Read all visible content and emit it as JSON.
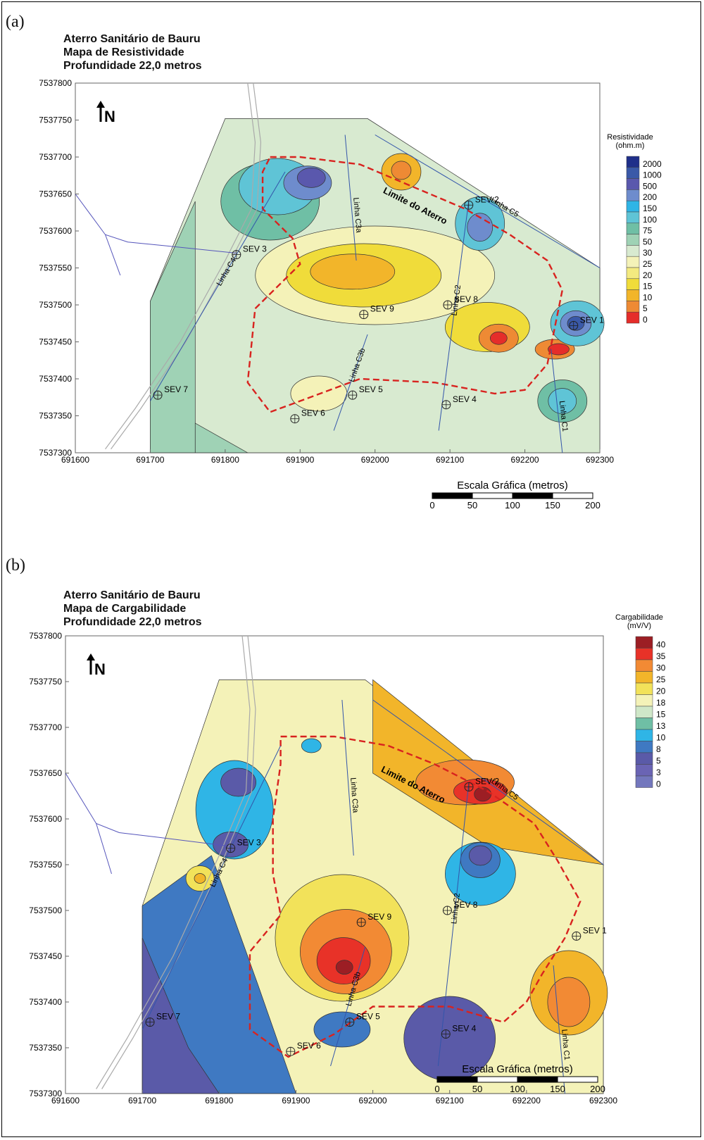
{
  "panels": [
    {
      "letter": "(a)",
      "title_lines": [
        "Aterro Sanitário de Bauru",
        "Mapa de Resistividade",
        "Profundidade 22,0 metros"
      ],
      "north_label": "N",
      "legend_title": [
        "Resistividade",
        "(ohm.m)"
      ],
      "legend_levels": [
        "2000",
        "1000",
        "500",
        "200",
        "150",
        "100",
        "75",
        "50",
        "30",
        "25",
        "20",
        "15",
        "10",
        "5",
        "0"
      ],
      "legend_colors": [
        "#1f2f8a",
        "#3a59a8",
        "#5a58ad",
        "#6e8ccd",
        "#2fb5e6",
        "#5fc4d6",
        "#6fbfa5",
        "#9fd2b5",
        "#d8ead0",
        "#f4f2b8",
        "#f3ea80",
        "#f0dc3a",
        "#f2b52a",
        "#ee8a34",
        "#e52d2a"
      ],
      "limit_label": "Limite do Aterro",
      "scale_title": "Escala Gráfica (metros)",
      "scale_ticks": [
        "0",
        "50",
        "100",
        "150",
        "200"
      ]
    },
    {
      "letter": "(b)",
      "title_lines": [
        "Aterro Sanitário de Bauru",
        "Mapa de Cargabilidade",
        "Profundidade 22,0 metros"
      ],
      "north_label": "N",
      "legend_title": [
        "Cargabilidade",
        "(mV/V)"
      ],
      "legend_levels": [
        "40",
        "35",
        "30",
        "25",
        "20",
        "18",
        "15",
        "13",
        "10",
        "8",
        "5",
        "3",
        "0"
      ],
      "legend_colors": [
        "#9c1e24",
        "#e83228",
        "#f28a34",
        "#f2b52a",
        "#f2e25a",
        "#f4f2b8",
        "#cfe7c8",
        "#6fbfa5",
        "#2fb5e6",
        "#3f79c2",
        "#5a5aa8",
        "#6a64b4",
        "#7377bd"
      ],
      "limit_label": "Limite do Aterro",
      "scale_title": "Escala Gráfica (metros)",
      "scale_ticks": [
        "0",
        "50",
        "100",
        "150",
        "200"
      ]
    }
  ],
  "axes": {
    "x_ticks": [
      "691600",
      "691700",
      "691800",
      "691900",
      "692000",
      "692100",
      "692200",
      "692300"
    ],
    "y_ticks": [
      "7537800",
      "7537750",
      "7537700",
      "7537650",
      "7537600",
      "7537550",
      "7537500",
      "7537450",
      "7537400",
      "7537350",
      "7537300"
    ],
    "xlim": [
      691600,
      692300
    ],
    "ylim": [
      7537300,
      7537800
    ]
  },
  "sevs": [
    {
      "label": "SEV 1",
      "x": 692265,
      "y": 7537472
    },
    {
      "label": "SEV 2",
      "x": 692125,
      "y": 7537635
    },
    {
      "label": "SEV 3",
      "x": 691815,
      "y": 7537568
    },
    {
      "label": "SEV 4",
      "x": 692095,
      "y": 7537365
    },
    {
      "label": "SEV 5",
      "x": 691970,
      "y": 7537378
    },
    {
      "label": "SEV 6",
      "x": 691893,
      "y": 7537346
    },
    {
      "label": "SEV 7",
      "x": 691710,
      "y": 7537378
    },
    {
      "label": "SEV 8",
      "x": 692097,
      "y": 7537500
    },
    {
      "label": "SEV 9",
      "x": 691985,
      "y": 7537487
    }
  ],
  "lines": [
    {
      "label": "Linha C1",
      "pts": [
        [
          692235,
          7537440
        ],
        [
          692250,
          7537300
        ]
      ]
    },
    {
      "label": "Linha C2",
      "pts": [
        [
          692125,
          7537640
        ],
        [
          692085,
          7537330
        ]
      ]
    },
    {
      "label": "Linha C3a",
      "pts": [
        [
          691960,
          7537730
        ],
        [
          691975,
          7537560
        ]
      ]
    },
    {
      "label": "Linha C3b",
      "pts": [
        [
          691990,
          7537460
        ],
        [
          691945,
          7537330
        ]
      ]
    },
    {
      "label": "Linha C4",
      "pts": [
        [
          691880,
          7537680
        ],
        [
          691700,
          7537370
        ]
      ]
    },
    {
      "label": "Linha C5",
      "pts": [
        [
          692000,
          7537730
        ],
        [
          692300,
          7537550
        ]
      ]
    }
  ]
}
